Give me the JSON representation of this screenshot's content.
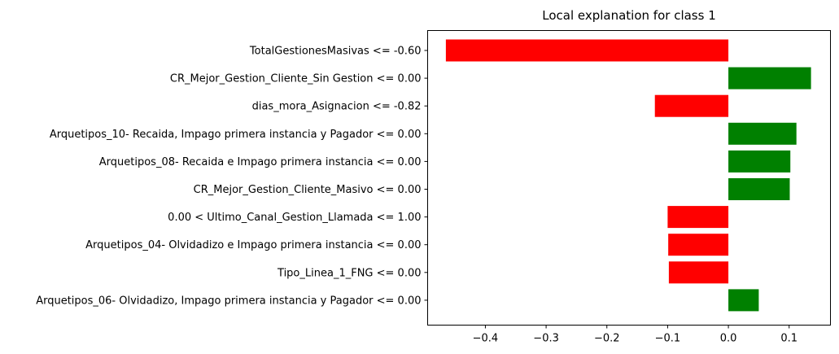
{
  "chart_data": {
    "type": "bar",
    "orientation": "horizontal",
    "title": "Local explanation for class 1",
    "xlabel": "",
    "ylabel": "",
    "xlim": [
      -0.495,
      0.168
    ],
    "xticks": [
      -0.4,
      -0.3,
      -0.2,
      -0.1,
      0.0,
      0.1
    ],
    "xtick_labels": [
      "−0.4",
      "−0.3",
      "−0.2",
      "−0.1",
      "0.0",
      "0.1"
    ],
    "grid": false,
    "colors": {
      "positive": "#008000",
      "negative": "#ff0000"
    },
    "categories": [
      "TotalGestionesMasivas <= -0.60",
      "CR_Mejor_Gestion_Cliente_Sin Gestion <= 0.00",
      "dias_mora_Asignacion <= -0.82",
      "Arquetipos_10- Recaida, Impago primera instancia y Pagador <= 0.00",
      "Arquetipos_08- Recaida e Impago primera instancia <= 0.00",
      "CR_Mejor_Gestion_Cliente_Masivo <= 0.00",
      "0.00 < Ultimo_Canal_Gestion_Llamada <= 1.00",
      "Arquetipos_04- Olvidadizo e Impago primera instancia <= 0.00",
      "Tipo_Linea_1_FNG <= 0.00",
      "Arquetipos_06- Olvidadizo, Impago primera instancia y Pagador <= 0.00"
    ],
    "values": [
      -0.465,
      0.136,
      -0.121,
      0.112,
      0.102,
      0.101,
      -0.1,
      -0.099,
      -0.098,
      0.05
    ]
  }
}
